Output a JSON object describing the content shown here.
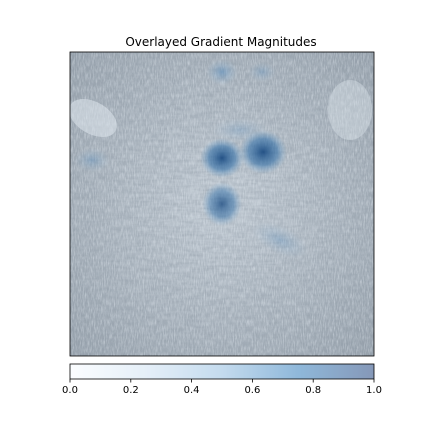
{
  "chart_data": {
    "type": "heatmap",
    "title": "Overlayed Gradient Magnitudes",
    "xlabel": "",
    "ylabel": "",
    "grid": false,
    "axes_ticks_hidden": true,
    "colorbar": {
      "orientation": "horizontal",
      "placement": "bottom",
      "range": [
        0.0,
        1.0
      ],
      "ticks": [
        0.0,
        0.2,
        0.4,
        0.6,
        0.8,
        1.0
      ],
      "tick_labels": [
        "0.0",
        "0.2",
        "0.4",
        "0.6",
        "0.8",
        "1.0"
      ],
      "colormap": "Blues",
      "alpha": 0.5,
      "color_low": "#f7fbff",
      "color_high": "#08306b"
    },
    "background_image": "grayscale plant / grass photo",
    "hotspots": [
      {
        "value": 0.9,
        "note": "left-center cluster"
      },
      {
        "value": 0.85,
        "note": "center cluster"
      },
      {
        "value": 0.75,
        "note": "lower-center cluster"
      },
      {
        "value": 0.45,
        "note": "top-center faint"
      },
      {
        "value": 0.35,
        "note": "left edge faint"
      }
    ]
  }
}
